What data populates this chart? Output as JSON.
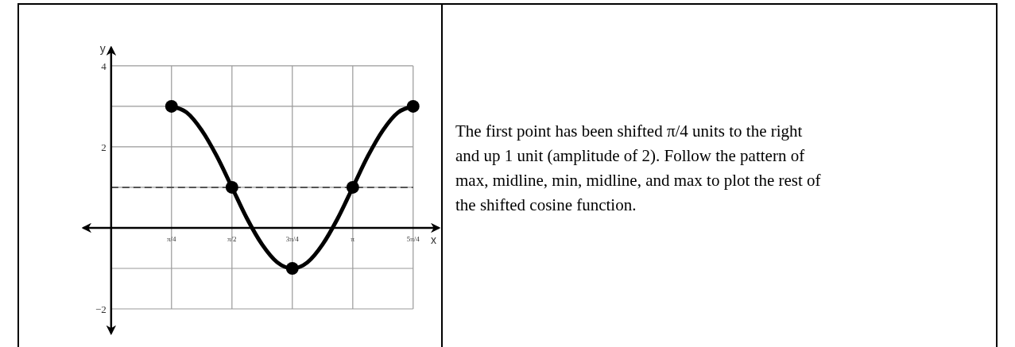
{
  "chart_data": [
    {
      "type": "line",
      "xlabel": "x",
      "ylabel": "y",
      "xlim": [
        -0.36,
        4.26
      ],
      "ylim": [
        -2.6,
        4.45
      ],
      "xticks": [
        {
          "value": 0.785,
          "label": "π/4"
        },
        {
          "value": 1.571,
          "label": "π/2"
        },
        {
          "value": 2.356,
          "label": "3π/4"
        },
        {
          "value": 3.142,
          "label": "π"
        },
        {
          "value": 3.927,
          "label": "5π/4"
        }
      ],
      "yticks": [
        {
          "value": -2,
          "label": "−2"
        },
        {
          "value": -1,
          "label": null
        },
        {
          "value": 0,
          "label": null
        },
        {
          "value": 1,
          "label": null
        },
        {
          "value": 2,
          "label": "2"
        },
        {
          "value": 3,
          "label": null
        },
        {
          "value": 4,
          "label": "4"
        }
      ],
      "grid": true,
      "series": [
        {
          "type": "line",
          "color": "#000000",
          "marker": "none",
          "x": [
            0.785,
            0.982,
            1.178,
            1.374,
            1.571,
            1.767,
            1.963,
            2.16,
            2.356,
            2.553,
            2.749,
            2.945,
            3.142,
            3.338,
            3.534,
            3.731,
            3.927
          ],
          "values": [
            3,
            2.85,
            2.41,
            1.77,
            1,
            0.23,
            -0.41,
            -0.85,
            -1,
            -0.85,
            -0.41,
            0.23,
            1,
            1.77,
            2.41,
            2.85,
            3
          ]
        },
        {
          "type": "scatter",
          "color": "#000000",
          "marker": "circle",
          "x": [
            0.785,
            1.571,
            2.356,
            3.142,
            3.927
          ],
          "values": [
            3,
            1,
            -1,
            1,
            3
          ]
        }
      ],
      "ref_lines": [
        {
          "axis": "y",
          "value": 1,
          "color": "#555555",
          "line_style": "dashed"
        }
      ]
    },
    {
      "type": "other",
      "annotations": [
        "The first point has been shifted π/4 units to the right and up 1 unit (amplitude of 2).   Follow the pattern of max, midline, min, midline, and max to plot the rest of the shifted cosine function."
      ]
    }
  ]
}
